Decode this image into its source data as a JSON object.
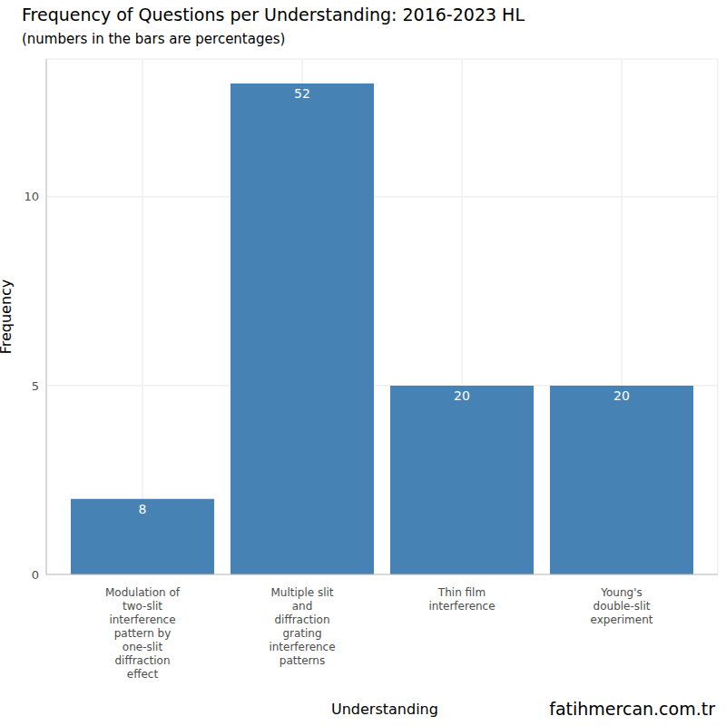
{
  "chart_data": {
    "type": "bar",
    "title": "Frequency of Questions per Understanding: 2016-2023 HL",
    "subtitle": "(numbers in the bars are percentages)",
    "x_label": "Understanding",
    "y_label": "Frequency",
    "source": "fatihmercan.com.tr",
    "categories": [
      "Modulation of two-slit interference pattern by one-slit diffraction effect",
      "Multiple slit and diffraction grating interference patterns",
      "Thin film interference",
      "Young's double-slit experiment"
    ],
    "values": [
      2,
      13,
      5,
      5
    ],
    "percentages": [
      8,
      52,
      20,
      20
    ],
    "color": "#4682b4",
    "ylim": [
      0,
      13.65
    ],
    "yticks": [
      0,
      5,
      10
    ],
    "grid": true
  }
}
